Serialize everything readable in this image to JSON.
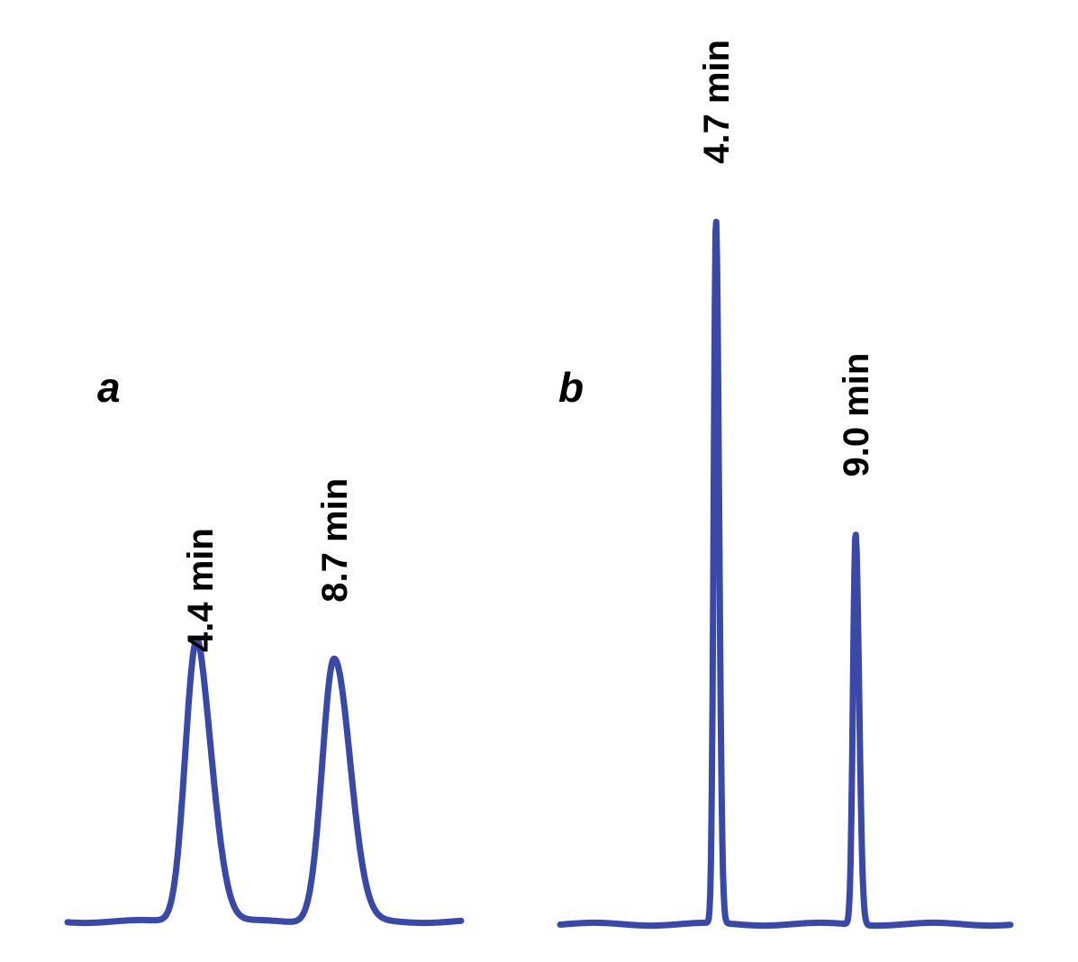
{
  "colors": {
    "trace": "#3a48a8",
    "text": "#000000",
    "background": "#ffffff"
  },
  "chart_data": [
    {
      "type": "line",
      "panel_label": "a",
      "title": "",
      "xlabel": "",
      "ylabel": "",
      "grid": false,
      "xlim": [
        0,
        13
      ],
      "ylim": [
        0,
        1
      ],
      "peaks": [
        {
          "label": "4.4 min",
          "time": 4.4,
          "height": 0.3,
          "width": 0.35,
          "shoulder": true
        },
        {
          "label": "8.7 min",
          "time": 8.7,
          "height": 0.37,
          "width": 0.38,
          "shoulder": false
        }
      ]
    },
    {
      "type": "line",
      "panel_label": "b",
      "title": "",
      "xlabel": "",
      "ylabel": "",
      "grid": false,
      "xlim": [
        0,
        13
      ],
      "ylim": [
        0,
        1
      ],
      "peaks": [
        {
          "label": "4.7 min",
          "time": 4.7,
          "height": 0.99,
          "width": 0.07,
          "shoulder": false
        },
        {
          "label": "9.0 min",
          "time": 9.0,
          "height": 0.55,
          "width": 0.08,
          "shoulder": false
        }
      ]
    }
  ]
}
